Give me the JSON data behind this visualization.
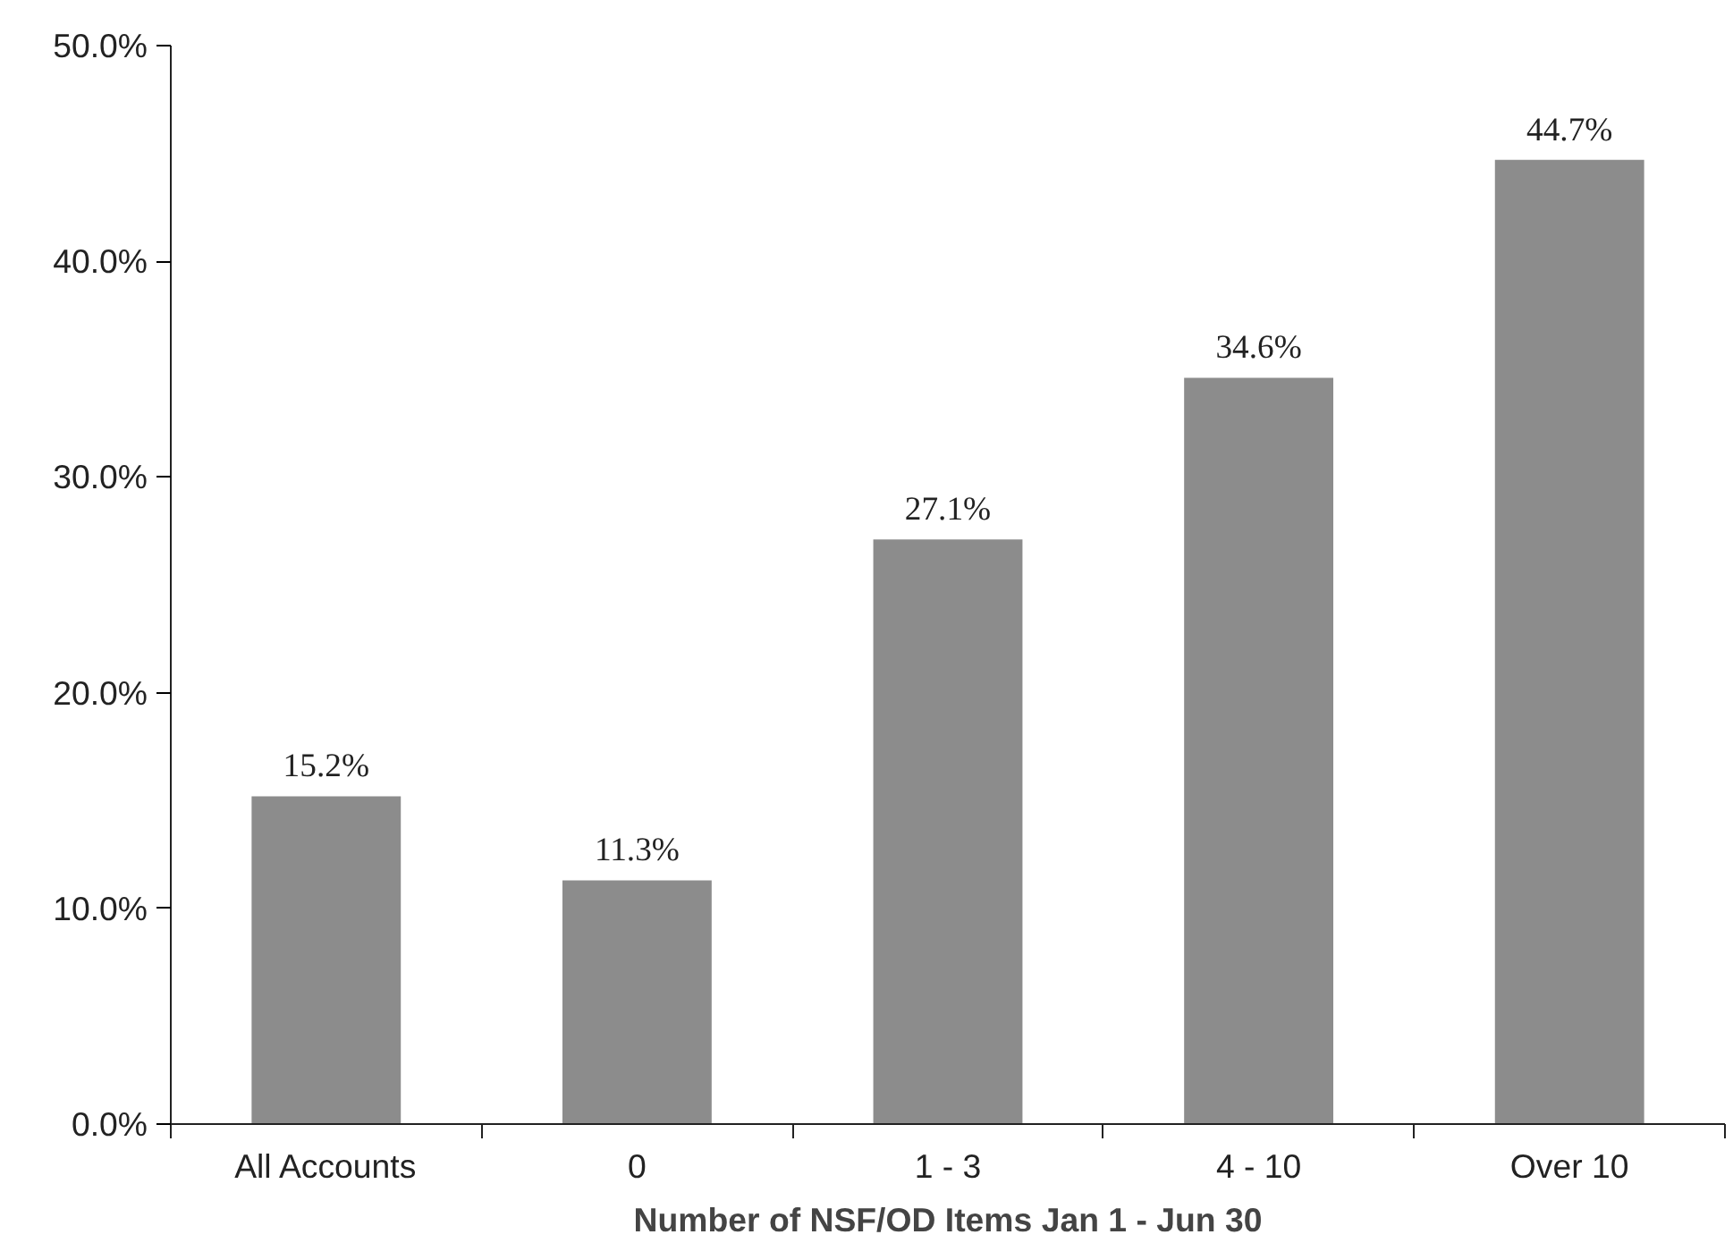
{
  "chart_data": {
    "type": "bar",
    "xlabel": "Number of NSF/OD Items Jan 1 - Jun 30",
    "categories": [
      "All Accounts",
      "0",
      "1 - 3",
      "4 - 10",
      "Over 10"
    ],
    "values": [
      15.2,
      11.3,
      27.1,
      34.6,
      44.7
    ],
    "value_labels": [
      "15.2%",
      "11.3%",
      "27.1%",
      "34.6%",
      "44.7%"
    ],
    "color": "#8c8c8c",
    "ylim": [
      0,
      50
    ],
    "yticks": [
      {
        "value": 0,
        "label": "0.0%"
      },
      {
        "value": 10,
        "label": "10.0%"
      },
      {
        "value": 20,
        "label": "20.0%"
      },
      {
        "value": 30,
        "label": "30.0%"
      },
      {
        "value": 40,
        "label": "40.0%"
      },
      {
        "value": 50,
        "label": "50.0%"
      }
    ],
    "grid": false
  }
}
